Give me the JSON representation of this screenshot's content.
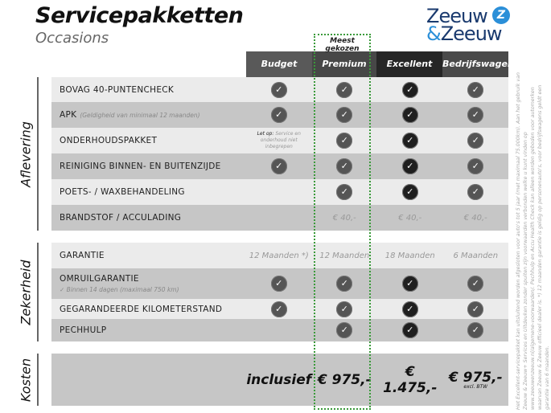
{
  "header": {
    "title": "Servicepakketten",
    "subtitle": "Occasions",
    "logo": "Zeeuw & Zeeuw",
    "badge": "Meest gekozen"
  },
  "columns": [
    {
      "label": "Budget",
      "color": "#595959"
    },
    {
      "label": "Premium",
      "color": "#474747"
    },
    {
      "label": "Excellent",
      "color": "#262626"
    },
    {
      "label": "Bedrijfswagens",
      "color": "#4a4a4a"
    }
  ],
  "sections": [
    {
      "label": "Aflevering",
      "rows": [
        {
          "label": "BOVAG 40-PUNTENCHECK",
          "cells": [
            "check",
            "check",
            "check",
            "check"
          ]
        },
        {
          "label": "APK",
          "sub": "(Geldigheid van minimaal 12 maanden)",
          "cells": [
            "check",
            "check",
            "check",
            "check"
          ]
        },
        {
          "label": "ONDERHOUDSPAKKET",
          "note_bold": "Let op:",
          "note": "Service en onderhoud niet inbegrepen",
          "cells": [
            "note",
            "check",
            "check",
            "check"
          ]
        },
        {
          "label": "REINIGING BINNEN- EN BUITENZIJDE",
          "cells": [
            "check",
            "check",
            "check",
            "check"
          ]
        },
        {
          "label": "POETS- / WAXBEHANDELING",
          "cells": [
            "",
            "check",
            "check",
            "check"
          ]
        },
        {
          "label": "BRANDSTOF / ACCULADING",
          "cells": [
            "",
            "€ 40,-",
            "€ 40,-",
            "€ 40,-"
          ]
        }
      ]
    },
    {
      "label": "Zekerheid",
      "rows": [
        {
          "label": "GARANTIE",
          "cells": [
            "12 Maanden *)",
            "12 Maanden",
            "18 Maanden",
            "6 Maanden"
          ]
        },
        {
          "label": "OMRUILGARANTIE",
          "sub2": "✓  Binnen 14 dagen (maximaal 750 km)",
          "cells": [
            "check",
            "check",
            "check",
            "check"
          ]
        },
        {
          "label": "GEGARANDEERDE KILOMETERSTAND",
          "cells": [
            "check",
            "check",
            "check",
            "check"
          ]
        },
        {
          "label": "PECHHULP",
          "cells": [
            "",
            "check",
            "check",
            "check"
          ]
        }
      ]
    },
    {
      "label": "Kosten",
      "rows": [
        {
          "label": "",
          "prices": [
            "inclusief",
            "€ 975,-",
            "€ 1.475,-",
            "€ 975,-"
          ],
          "price_note": "excl. BTW"
        }
      ]
    }
  ],
  "footnote": "Het Excellent-servicepakket kan uitsluitend worden afgesloten voor auto's tot 5 jaar (met maximaal 75.000km). Aan het gebruik van Zeeuw & Zeeuw+ Services en Uitdeuken zonder spuiten zijn voorwaarden verbonden welke u kunt vinden op www.zeeuwenzeeuw.nl/algemene-voorwaarden/. Pechhulp en Accu Health Check kan alleen worden geboden voor automerken waarvan Zeeuw & Zeeuw officieel dealer is. *) 12 maanden garantie is geldig op personenauto's, voor bedrijfswagens geldt een garantie van 6 maanden."
}
